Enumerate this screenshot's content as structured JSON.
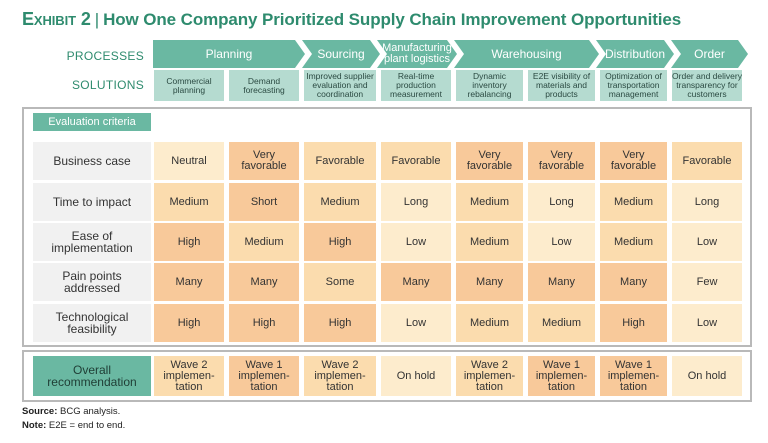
{
  "title": {
    "exhibit": "Exhibit 2",
    "separator": "|",
    "text": "How One Company Prioritized Supply Chain Improvement Opportunities"
  },
  "labels": {
    "processes": "PROCESSES",
    "solutions": "SOLUTIONS",
    "evaluation_criteria": "Evaluation criteria",
    "overall": "Overall recommendation"
  },
  "processes": [
    "Planning",
    "Sourcing",
    "Manufacturing plant logistics",
    "Warehousing",
    "Distribution",
    "Order"
  ],
  "solutions": [
    "Commercial planning",
    "Demand forecasting",
    "Improved supplier evaluation and coordination",
    "Real-time production measurement",
    "Dynamic inventory rebalancing",
    "E2E visibility of materials and products",
    "Optimization of transportation management",
    "Order and delivery transparency for customers"
  ],
  "criteria": [
    {
      "name": "Business case",
      "values": [
        "Neutral",
        "Very favorable",
        "Favorable",
        "Favorable",
        "Very favorable",
        "Very favorable",
        "Very favorable",
        "Favorable"
      ]
    },
    {
      "name": "Time to impact",
      "values": [
        "Medium",
        "Short",
        "Medium",
        "Long",
        "Medium",
        "Long",
        "Medium",
        "Long"
      ]
    },
    {
      "name": "Ease of implementation",
      "values": [
        "High",
        "Medium",
        "High",
        "Low",
        "Medium",
        "Low",
        "Medium",
        "Low"
      ]
    },
    {
      "name": "Pain points addressed",
      "values": [
        "Many",
        "Many",
        "Some",
        "Many",
        "Many",
        "Many",
        "Many",
        "Few"
      ]
    },
    {
      "name": "Technological feasibility",
      "values": [
        "High",
        "High",
        "High",
        "Low",
        "Medium",
        "Medium",
        "High",
        "Low"
      ]
    }
  ],
  "overall": [
    "Wave 2 implemen-tation",
    "Wave 1 implemen-tation",
    "Wave 2 implemen-tation",
    "On hold",
    "Wave 2 implemen-tation",
    "Wave 1 implemen-tation",
    "Wave 1 implemen-tation",
    "On hold"
  ],
  "colors": {
    "dark": "#f8c99a",
    "mid": "#fbdcae",
    "light": "#fdeccd",
    "teal": "#6ab8a2",
    "teal_light": "#b5dbd0"
  },
  "footer": {
    "source_label": "Source:",
    "source": "BCG analysis.",
    "note_label": "Note:",
    "note": "E2E = end to end."
  }
}
